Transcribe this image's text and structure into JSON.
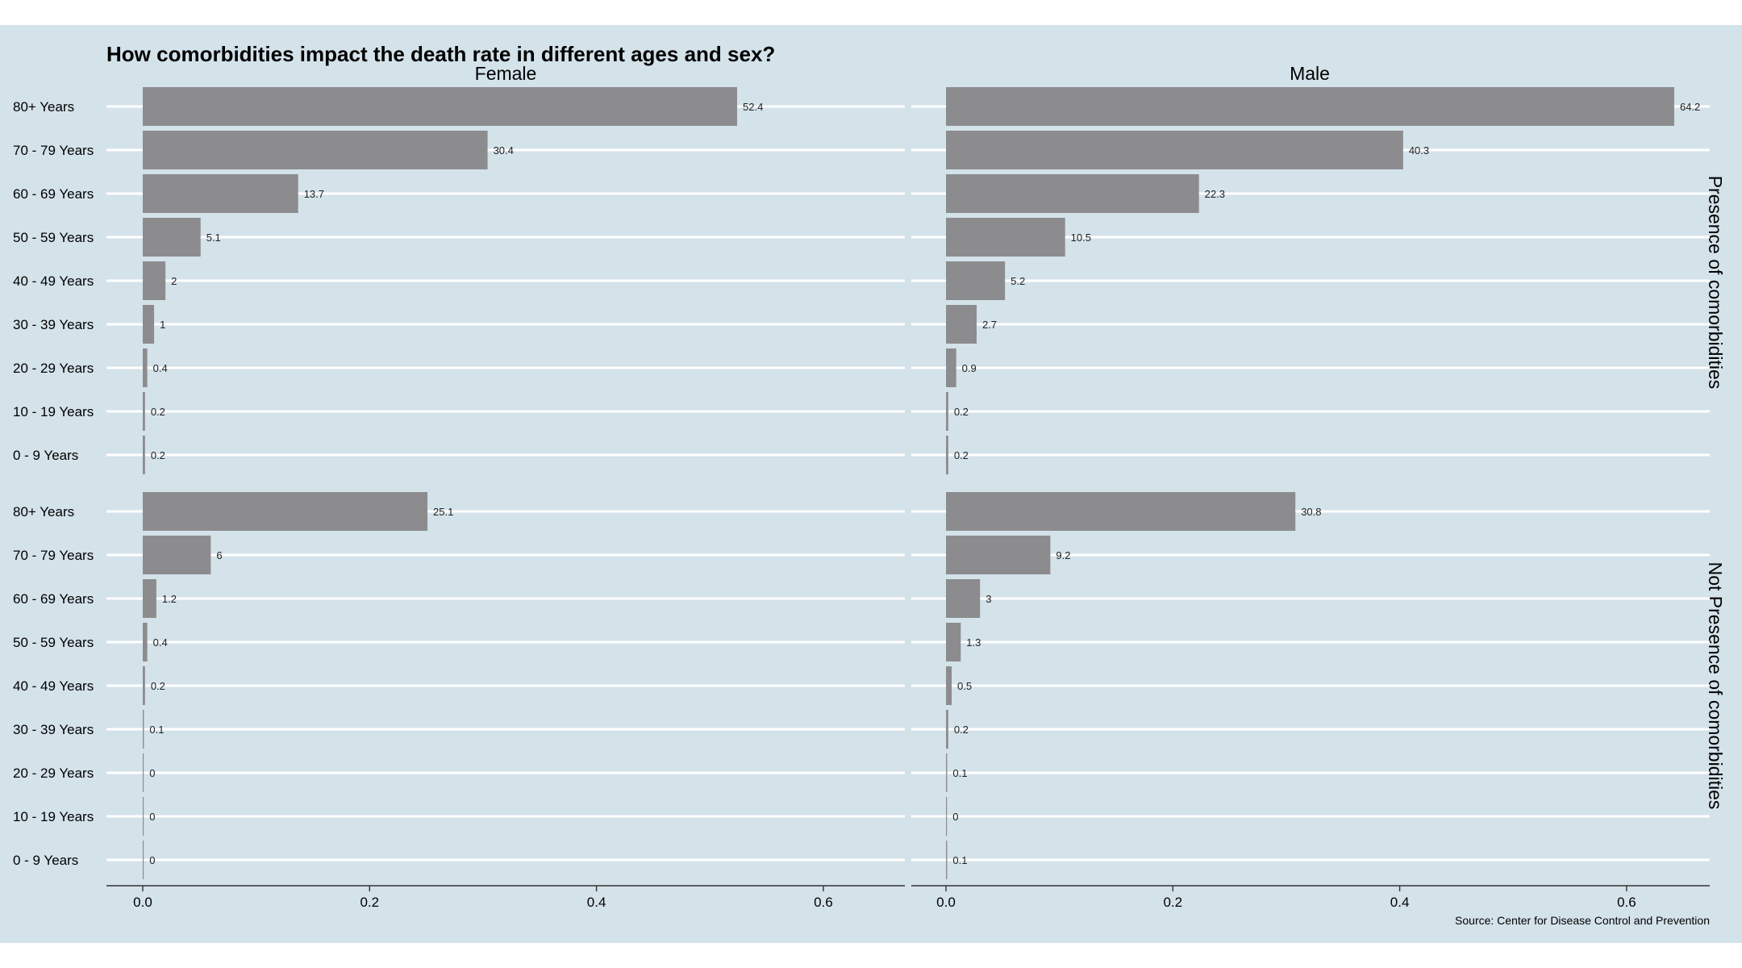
{
  "chart_data": {
    "type": "bar",
    "orientation": "horizontal",
    "title": "How comorbidities impact the death rate in different ages and sex?",
    "caption": "Source: Center for Disease Control and Prevention",
    "xlim": [
      0,
      0.66
    ],
    "x_ticks": [
      "0.0",
      "0.2",
      "0.4",
      "0.6"
    ],
    "x_tick_values": [
      0,
      0.2,
      0.4,
      0.6
    ],
    "categories": [
      "80+ Years",
      "70 - 79 Years",
      "60 - 69 Years",
      "50 - 59 Years",
      "40 - 49 Years",
      "30 - 39 Years",
      "20 - 29 Years",
      "10 - 19 Years",
      "0 - 9 Years"
    ],
    "columns": [
      "Female",
      "Male"
    ],
    "rows": [
      "Presence of comorbidities",
      "Not Presence of comorbidities"
    ],
    "panels": [
      {
        "row": 0,
        "col": 0,
        "values": [
          0.524,
          0.304,
          0.137,
          0.051,
          0.02,
          0.01,
          0.004,
          0.002,
          0.002
        ],
        "labels": [
          "52.4",
          "30.4",
          "13.7",
          "5.1",
          "2",
          "1",
          "0.4",
          "0.2",
          "0.2"
        ]
      },
      {
        "row": 0,
        "col": 1,
        "values": [
          0.642,
          0.403,
          0.223,
          0.105,
          0.052,
          0.027,
          0.009,
          0.002,
          0.002
        ],
        "labels": [
          "64.2",
          "40.3",
          "22.3",
          "10.5",
          "5.2",
          "2.7",
          "0.9",
          "0.2",
          "0.2"
        ]
      },
      {
        "row": 1,
        "col": 0,
        "values": [
          0.251,
          0.06,
          0.012,
          0.004,
          0.002,
          0.001,
          0.0,
          0.0,
          0.0
        ],
        "labels": [
          "25.1",
          "6",
          "1.2",
          "0.4",
          "0.2",
          "0.1",
          "0",
          "0",
          "0"
        ]
      },
      {
        "row": 1,
        "col": 1,
        "values": [
          0.308,
          0.092,
          0.03,
          0.013,
          0.005,
          0.002,
          0.001,
          0.0,
          0.001
        ],
        "labels": [
          "30.8",
          "9.2",
          "3",
          "1.3",
          "0.5",
          "0.2",
          "0.1",
          "0",
          "0.1"
        ]
      }
    ],
    "colors": {
      "background": "#d4e2ea",
      "bar": "#8c8c8e",
      "grid": "#ffffff"
    },
    "grid": true,
    "legend": "none"
  }
}
